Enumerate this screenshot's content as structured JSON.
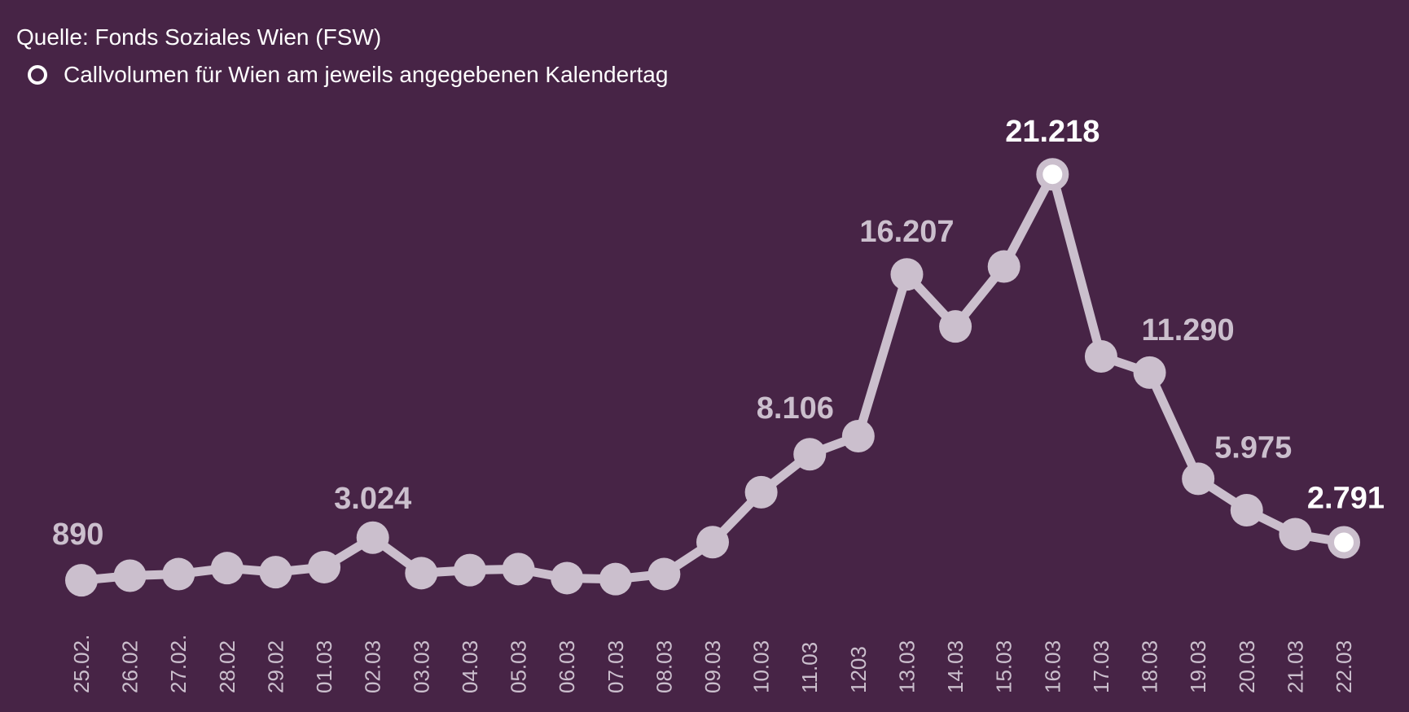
{
  "header": {
    "source": "Quelle: Fonds Soziales Wien (FSW)",
    "legend_label": "Callvolumen für Wien am jeweils angegebenen Kalendertag"
  },
  "chart_data": {
    "type": "line",
    "categories": [
      "25.02.",
      "26.02",
      "27.02.",
      "28.02",
      "29.02",
      "01.03",
      "02.03",
      "03.03",
      "04.03",
      "05.03",
      "06.03",
      "07.03",
      "08.03",
      "09.03",
      "10.03",
      "11.03",
      "1203",
      "13.03",
      "14.03",
      "15.03",
      "16.03",
      "17.03",
      "18.03",
      "19.03",
      "20.03",
      "21.03",
      "22.03"
    ],
    "values": [
      890,
      1120,
      1200,
      1500,
      1300,
      1550,
      3024,
      1250,
      1400,
      1450,
      1000,
      950,
      1200,
      2800,
      5300,
      7200,
      8106,
      16207,
      13600,
      16600,
      21218,
      12100,
      11290,
      5975,
      4400,
      3200,
      2791
    ],
    "labels": [
      {
        "index": 0,
        "text": "890",
        "highlight": false
      },
      {
        "index": 6,
        "text": "3.024",
        "highlight": false
      },
      {
        "index": 16,
        "text": "8.106",
        "highlight": false
      },
      {
        "index": 17,
        "text": "16.207",
        "highlight": false
      },
      {
        "index": 20,
        "text": "21.218",
        "highlight": true
      },
      {
        "index": 22,
        "text": "11.290",
        "highlight": false
      },
      {
        "index": 23,
        "text": "5.975",
        "highlight": false
      },
      {
        "index": 26,
        "text": "2.791",
        "highlight": true
      }
    ],
    "highlight_indices": [
      20,
      26
    ],
    "ylim": [
      0,
      22000
    ],
    "grid": false,
    "legend_position": "top-left",
    "colors": {
      "background": "#472446",
      "line": "#cbbfcd",
      "highlight_fill": "#ffffff",
      "label": "#cbbfcd",
      "highlight_label": "#ffffff",
      "tick": "#cbbfcd",
      "text": "#ffffff"
    }
  }
}
